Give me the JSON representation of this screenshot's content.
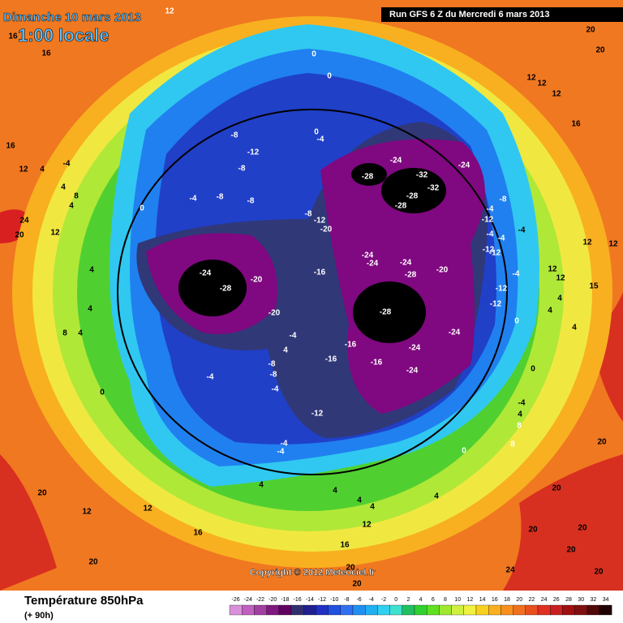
{
  "header": {
    "date": "Dimanche 10 mars 2013",
    "local_time": "1:00 locale",
    "run": "Run GFS 6 Z du Mercredi 6 mars 2013"
  },
  "map": {
    "contour_labels": [
      -24,
      -28,
      -20,
      -20,
      -16,
      -20,
      -12,
      -8,
      -24,
      -24,
      -24,
      -28,
      -20,
      -28,
      -24,
      -24,
      -16,
      -16,
      -16,
      -24,
      -12,
      -28,
      -24,
      -32,
      -32,
      -28,
      -28,
      -24,
      -8,
      -12,
      -8,
      -8,
      -8,
      -4,
      0,
      -4,
      0,
      0,
      0,
      -8,
      -12,
      -4,
      -4,
      -4,
      -4,
      -12,
      -12,
      -4,
      -12,
      -12,
      0,
      12,
      12,
      12,
      12,
      15,
      4,
      4,
      4,
      0,
      8,
      4,
      -4,
      8,
      20,
      20,
      20,
      20,
      20,
      20,
      24,
      20,
      20,
      16,
      12,
      4,
      4,
      4,
      4,
      0,
      -4,
      -4,
      4,
      12,
      12,
      16,
      20,
      20,
      -4,
      0,
      4,
      4,
      8,
      4,
      12,
      12,
      16,
      16,
      16,
      12,
      24,
      20,
      4,
      -4,
      4,
      4,
      8,
      20,
      20,
      12,
      12,
      12,
      16,
      4,
      -8,
      -8,
      -4,
      -4
    ]
  },
  "copyright": "Copyright © 2012 Meteociel.fr",
  "footer": {
    "title": "Température 850hPa",
    "lead": "(+ 90h)"
  },
  "legend": {
    "ticks": [
      -26,
      -24,
      -22,
      -20,
      -18,
      -16,
      -14,
      -12,
      -10,
      -8,
      -6,
      -4,
      -2,
      0,
      2,
      4,
      6,
      8,
      10,
      12,
      14,
      16,
      18,
      20,
      22,
      24,
      26,
      28,
      30,
      32,
      34
    ],
    "colors": [
      "#d890d8",
      "#c060c0",
      "#a040a0",
      "#801880",
      "#600060",
      "#303070",
      "#202090",
      "#2030c0",
      "#2050e0",
      "#3070f0",
      "#2090f0",
      "#20b0f0",
      "#30d0f0",
      "#40e0d0",
      "#20c060",
      "#30d030",
      "#60e020",
      "#a0e830",
      "#d0f040",
      "#f0f040",
      "#f8d020",
      "#f8b020",
      "#f89020",
      "#f07020",
      "#e85020",
      "#e03020",
      "#c82020",
      "#a01010",
      "#801010",
      "#500808",
      "#200000"
    ]
  }
}
